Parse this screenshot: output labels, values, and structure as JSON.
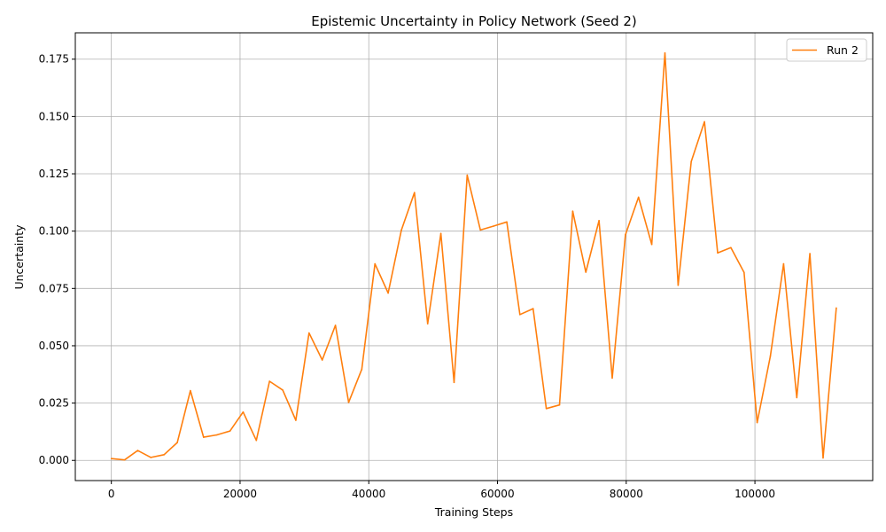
{
  "chart_data": {
    "type": "line",
    "title": "Epistemic Uncertainty in Policy Network (Seed 2)",
    "xlabel": "Training Steps",
    "ylabel": "Uncertainty",
    "xlim": [
      -5600,
      118300
    ],
    "ylim": [
      -0.0088,
      0.1865
    ],
    "xticks": [
      0,
      20000,
      40000,
      60000,
      80000,
      100000
    ],
    "xtick_labels": [
      "0",
      "20000",
      "40000",
      "60000",
      "80000",
      "100000"
    ],
    "yticks": [
      0.0,
      0.025,
      0.05,
      0.075,
      0.1,
      0.125,
      0.15,
      0.175
    ],
    "ytick_labels": [
      "0.000",
      "0.025",
      "0.050",
      "0.075",
      "0.100",
      "0.125",
      "0.150",
      "0.175"
    ],
    "grid": true,
    "legend": "top-right",
    "series": [
      {
        "name": "Run 2",
        "color": "#ff7f0e",
        "x": [
          0,
          2048,
          4096,
          6144,
          8192,
          10240,
          12288,
          14336,
          16384,
          18432,
          20480,
          22528,
          24576,
          26624,
          28672,
          30720,
          32768,
          34816,
          36864,
          38912,
          40960,
          43008,
          45056,
          47104,
          49152,
          51200,
          53248,
          55296,
          57344,
          59392,
          61440,
          63488,
          65536,
          67584,
          69632,
          71680,
          73728,
          75776,
          77824,
          79872,
          81920,
          83968,
          86016,
          88064,
          90112,
          92160,
          94208,
          96256,
          98304,
          100352,
          102400,
          104448,
          106496,
          108544,
          110592,
          112640
        ],
        "values": [
          0.0008,
          0.0002,
          0.0043,
          0.0013,
          0.0025,
          0.0078,
          0.0304,
          0.0101,
          0.0111,
          0.0128,
          0.0211,
          0.0087,
          0.0345,
          0.0307,
          0.0175,
          0.0556,
          0.0438,
          0.0589,
          0.0253,
          0.0397,
          0.0857,
          0.073,
          0.1004,
          0.1168,
          0.0596,
          0.099,
          0.034,
          0.1244,
          0.1005,
          0.1022,
          0.104,
          0.0636,
          0.0662,
          0.0226,
          0.0242,
          0.1087,
          0.0821,
          0.1046,
          0.0359,
          0.0984,
          0.1148,
          0.0942,
          0.1777,
          0.0764,
          0.1304,
          0.1477,
          0.0905,
          0.0928,
          0.082,
          0.0165,
          0.0455,
          0.0857,
          0.0274,
          0.0902,
          0.0011,
          0.0665
        ]
      }
    ]
  }
}
